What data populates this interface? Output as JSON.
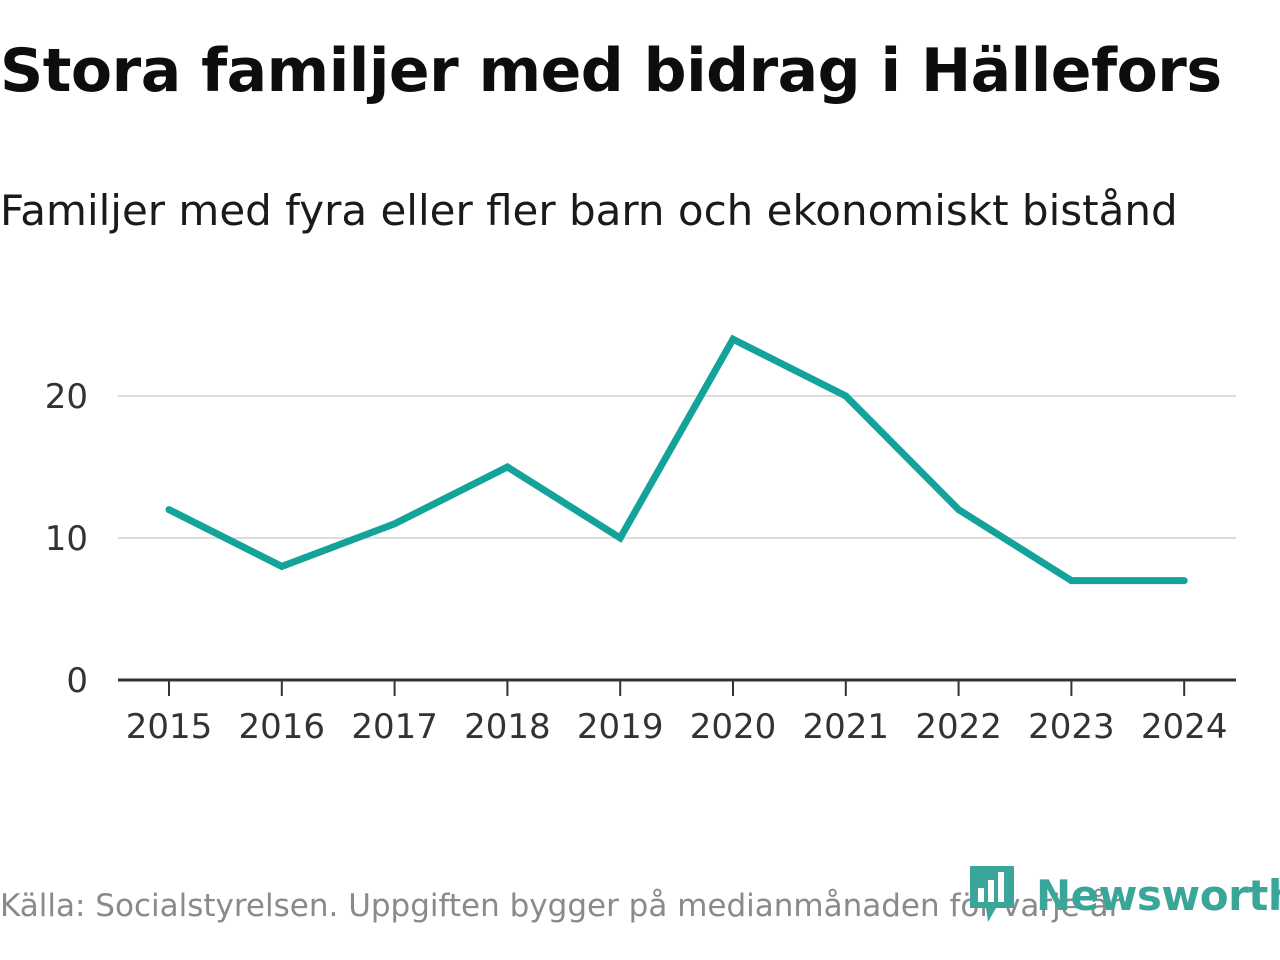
{
  "title": "Stora familjer med bidrag i Hällefors",
  "subtitle": "Familjer med fyra eller fler barn och ekonomiskt bistånd",
  "footer": "Källa: Socialstyrelsen. Uppgiften bygger på medianmånaden för varje år",
  "logo": {
    "text": "Newsworthy",
    "icon": "newsworthy-logo-icon"
  },
  "colors": {
    "line": "#14a39a",
    "grid": "#dddddd",
    "axis": "#333333",
    "logo": "#3aa599"
  },
  "chart_data": {
    "type": "line",
    "title": "Stora familjer med bidrag i Hällefors",
    "subtitle": "Familjer med fyra eller fler barn och ekonomiskt bistånd",
    "xlabel": "",
    "ylabel": "",
    "categories": [
      "2015",
      "2016",
      "2017",
      "2018",
      "2019",
      "2020",
      "2021",
      "2022",
      "2023",
      "2024"
    ],
    "series": [
      {
        "name": "Familjer med fyra eller fler barn och ekonomiskt bistånd",
        "values": [
          12,
          8,
          11,
          15,
          10,
          24,
          20,
          12,
          7,
          7
        ]
      }
    ],
    "yticks": [
      0,
      10,
      20
    ],
    "ylim": [
      0,
      25
    ],
    "grid": true,
    "legend": "none"
  }
}
